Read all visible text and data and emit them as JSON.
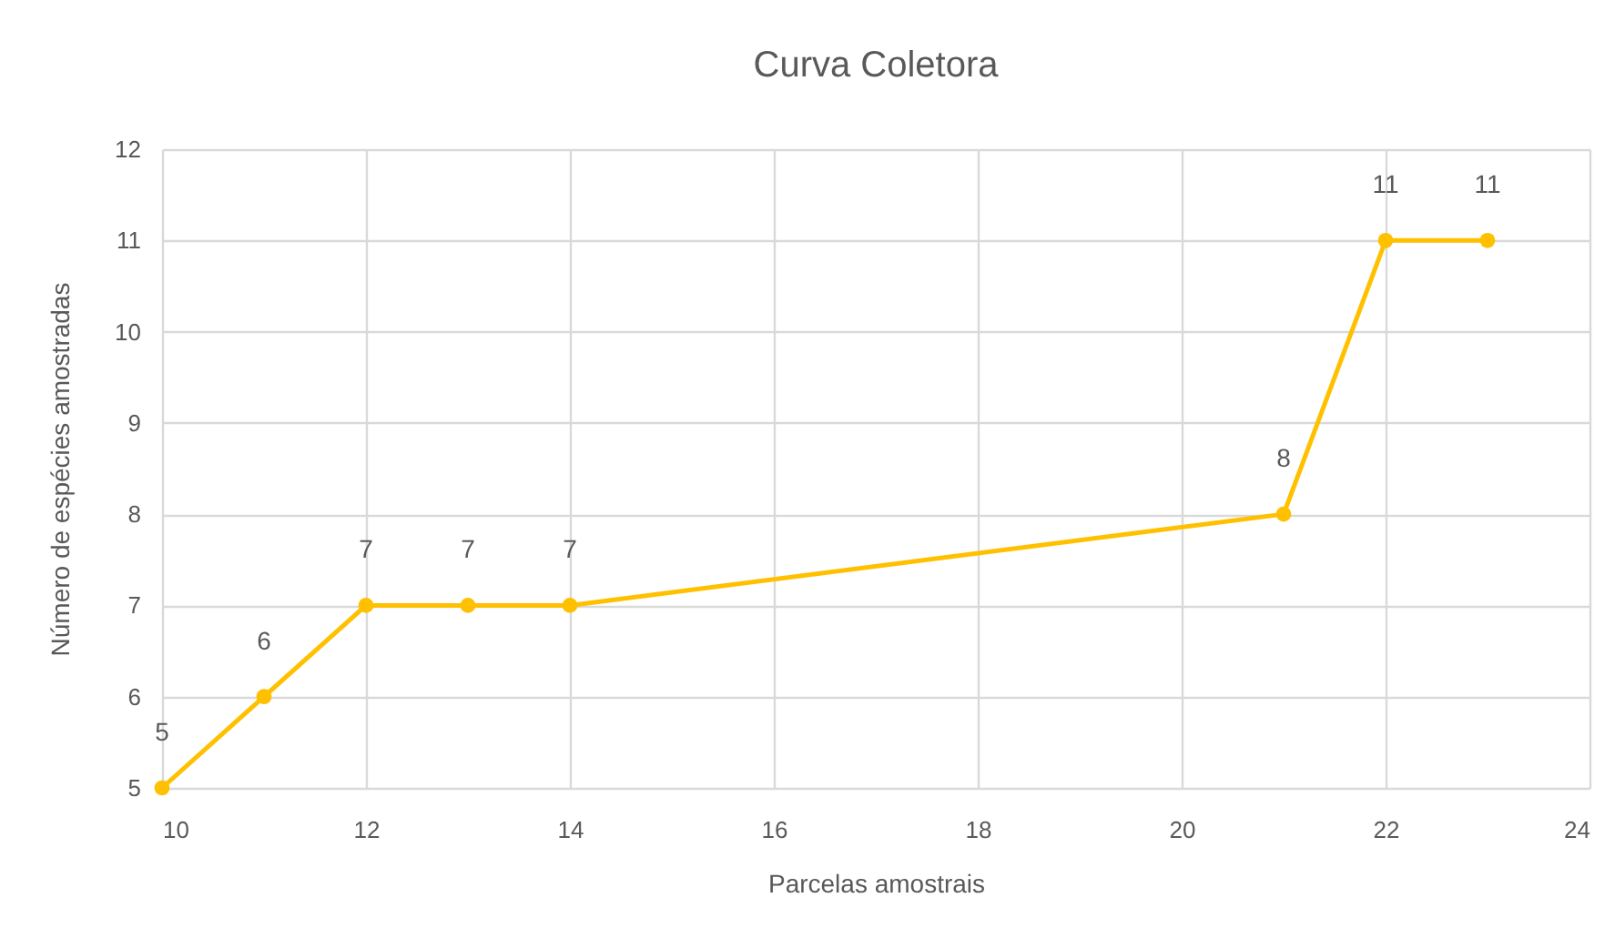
{
  "chart_data": {
    "type": "line",
    "title": "Curva Coletora",
    "xlabel": "Parcelas amostrais",
    "ylabel": "Número de espécies amostradas",
    "x": [
      10,
      11,
      12,
      13,
      14,
      21,
      22,
      23
    ],
    "series": [
      {
        "color": "#ffc000",
        "values": [
          5,
          6,
          7,
          7,
          7,
          8,
          11,
          11
        ]
      }
    ],
    "xlim": [
      10,
      24
    ],
    "ylim": [
      5,
      12
    ],
    "xticks": [
      10,
      12,
      14,
      16,
      18,
      20,
      22,
      24
    ],
    "yticks": [
      5,
      6,
      7,
      8,
      9,
      10,
      11,
      12
    ],
    "grid": true,
    "marker": "circle",
    "line_style": "solid",
    "data_labels": true
  }
}
